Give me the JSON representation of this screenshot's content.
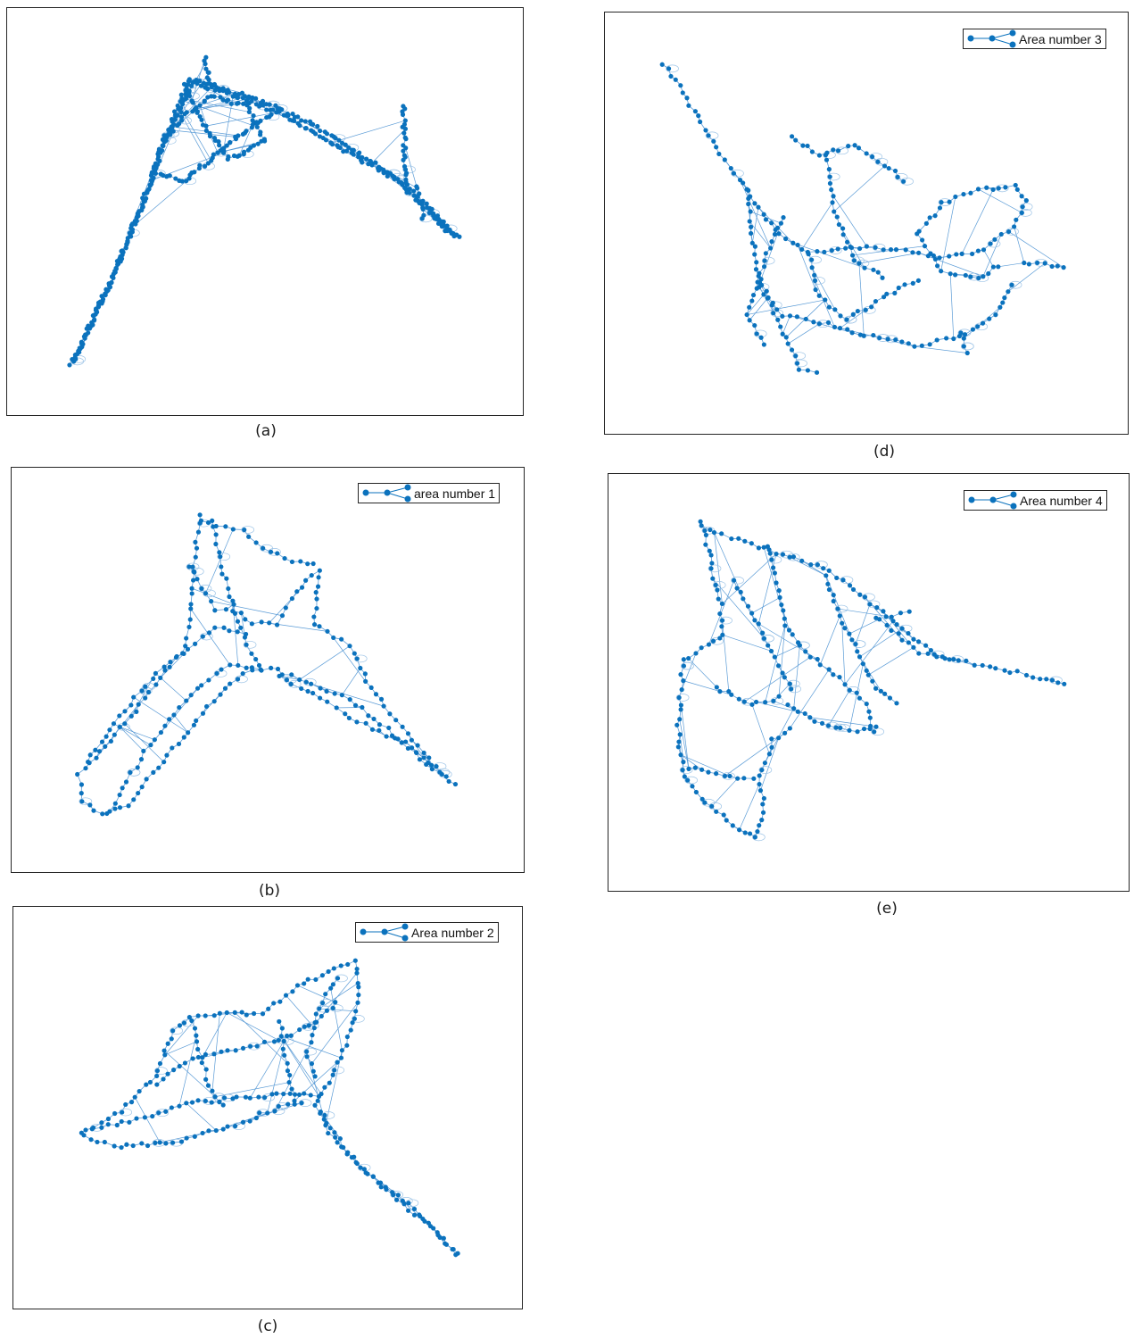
{
  "colors": {
    "node": "#0b72bd",
    "edge": "#5a9bd6",
    "frame": "#262626"
  },
  "panels": [
    {
      "id": "a",
      "caption": "(a)",
      "legend": null
    },
    {
      "id": "b",
      "caption": "(b)",
      "legend": "area number 1"
    },
    {
      "id": "c",
      "caption": "(c)",
      "legend": "Area number 2"
    },
    {
      "id": "d",
      "caption": "(d)",
      "legend": "Area number 3"
    },
    {
      "id": "e",
      "caption": "(e)",
      "legend": "Area number 4"
    }
  ],
  "legend_icon": "graph-node-edge-icon"
}
